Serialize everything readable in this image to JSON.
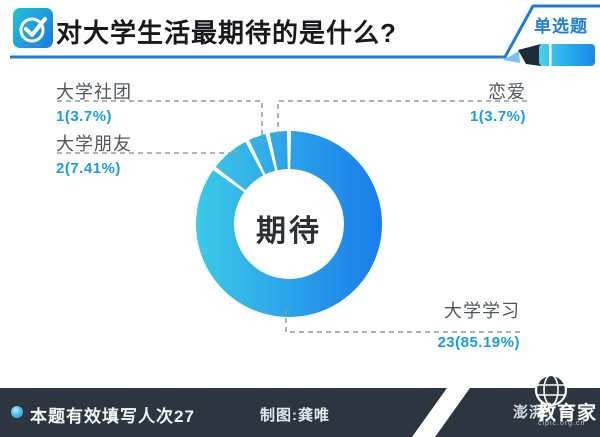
{
  "header": {
    "title": "对大学生活最期待的是什么?",
    "badge": "单选题"
  },
  "chart_data": {
    "type": "pie",
    "subtype": "donut",
    "center_label": "期待",
    "total_responses": 27,
    "segments": [
      {
        "label": "大学学习",
        "value": 23,
        "percent": 85.19,
        "display": "23(85.19%)"
      },
      {
        "label": "大学朋友",
        "value": 2,
        "percent": 7.41,
        "display": "2(7.41%)"
      },
      {
        "label": "大学社团",
        "value": 1,
        "percent": 3.7,
        "display": "1(3.7%)"
      },
      {
        "label": "恋爱",
        "value": 1,
        "percent": 3.7,
        "display": "1(3.7%)"
      }
    ],
    "colors": {
      "gradient_left": "#3bcae8",
      "gradient_right": "#1a7cec"
    },
    "layout": "donut chart, segments drawn clockwise starting at 12 o'clock, dashed leader lines to outside labels"
  },
  "footer": {
    "stat": "本题有效填写人次27",
    "credit": "制图:龚唯",
    "logo_prefix": "澎湃",
    "logo_text": "教育家",
    "logo_url": "cipic.org.cn"
  },
  "colors": {
    "accent_blue": "#1d7fd9",
    "value_blue": "#189ce6",
    "label_gray": "#50575c",
    "footer_bg": "#2b3640"
  }
}
